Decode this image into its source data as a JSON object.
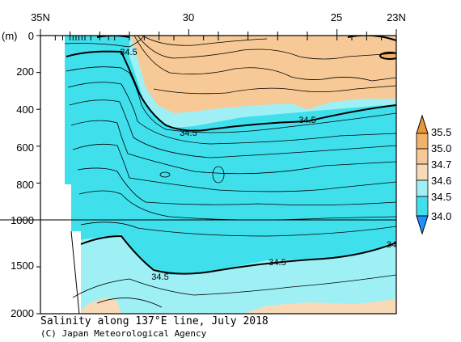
{
  "chart_data": {
    "type": "contour",
    "title": "Salinity along 137°E line, July 2018",
    "credit": "(C) Japan Meteorological Agency",
    "xlabel": "",
    "ylabel": "(m)",
    "x_axis": {
      "tick_labels": [
        "35N",
        "30",
        "25",
        "23N"
      ],
      "tick_values": [
        35,
        30,
        25,
        23
      ],
      "range": [
        35,
        23
      ]
    },
    "y_axis": {
      "tick_labels": [
        "0",
        "200",
        "400",
        "600",
        "800",
        "1000",
        "1500",
        "2000"
      ],
      "upper_section": {
        "range": [
          0,
          1000
        ],
        "ticks": [
          0,
          200,
          400,
          600,
          800,
          1000
        ]
      },
      "lower_section": {
        "range": [
          1000,
          2000
        ],
        "ticks": [
          1000,
          1500,
          2000
        ]
      }
    },
    "legend": {
      "placement": "right",
      "levels": [
        "35.5",
        "35.0",
        "34.7",
        "34.6",
        "34.5",
        "34.0"
      ],
      "colors": {
        "above_35_5": "#e8963a",
        "35_0_to_35_5": "#f2b26a",
        "34_7_to_35_0": "#f7c996",
        "34_6_to_34_7": "#f8d9b8",
        "34_5_to_34_6": "#9ef0f5",
        "34_0_to_34_5": "#3fe0ec",
        "below_34_0": "#1e90ff"
      }
    },
    "contour_labels": [
      "34.5",
      "34.5",
      "34.5",
      "34.5",
      "34.5",
      "34"
    ],
    "bold_contour_value": 34.5,
    "colors": {
      "line": "#000000",
      "station_tick": "#000000"
    }
  }
}
